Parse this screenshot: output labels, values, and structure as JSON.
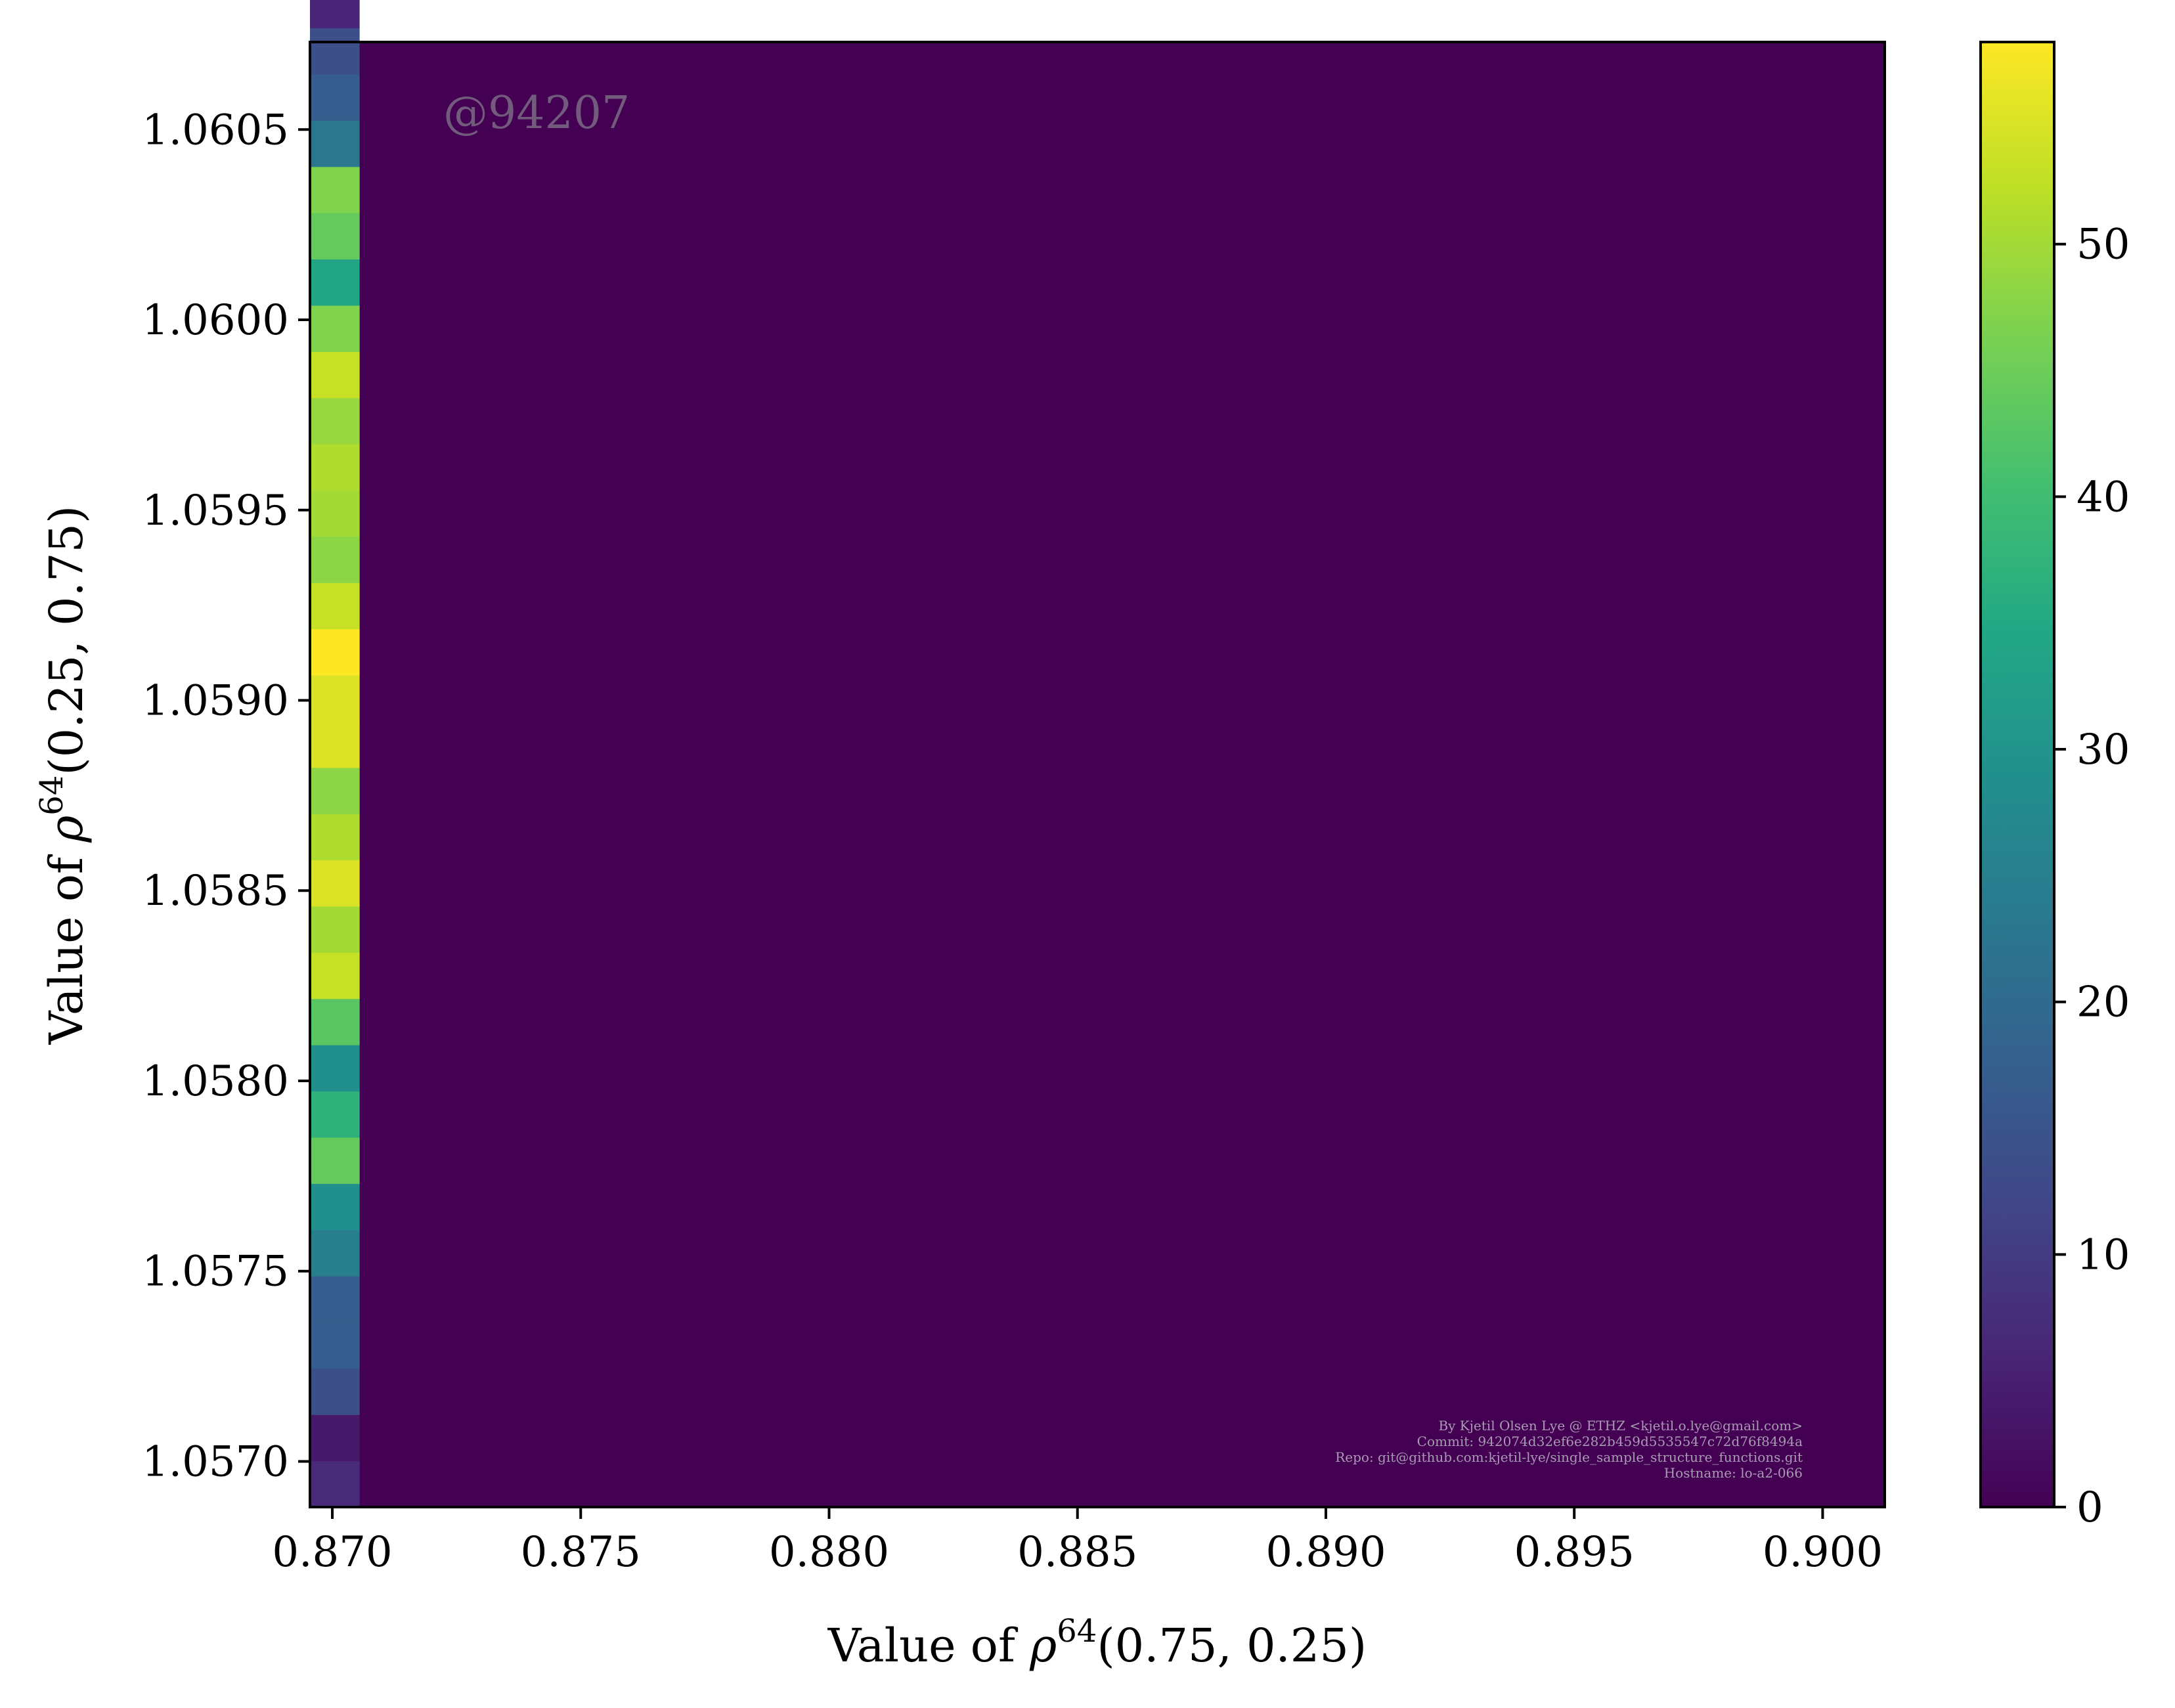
{
  "chart_data": {
    "type": "heatmap",
    "title": "",
    "xlabel": {
      "prefix": "Value of ",
      "var": "ρ",
      "sup": "64",
      "args": "(0.75, 0.25)"
    },
    "ylabel": {
      "prefix": "Value of ",
      "var": "ρ",
      "sup": "64",
      "args": "(0.25, 0.75)"
    },
    "xlim": [
      0.86955,
      0.90125
    ],
    "ylim": [
      1.05688,
      1.06073
    ],
    "xticks": [
      0.87,
      0.875,
      0.88,
      0.885,
      0.89,
      0.895,
      0.9
    ],
    "xtick_labels": [
      "0.870",
      "0.875",
      "0.880",
      "0.885",
      "0.890",
      "0.895",
      "0.900"
    ],
    "yticks": [
      1.057,
      1.0575,
      1.058,
      1.0585,
      1.059,
      1.0595,
      1.06,
      1.0605
    ],
    "ytick_labels": [
      "1.0570",
      "1.0575",
      "1.0580",
      "1.0585",
      "1.0590",
      "1.0595",
      "1.0600",
      "1.0605"
    ],
    "colormap": "viridis",
    "background_color": "#440154",
    "colorbar": {
      "min": 0,
      "max": 58,
      "ticks": [
        0,
        10,
        20,
        30,
        40,
        50
      ],
      "tick_labels": [
        "0",
        "10",
        "20",
        "30",
        "40",
        "50"
      ]
    },
    "bins": {
      "x_start": 0.86955,
      "x_end": 0.87055,
      "y_start": 1.05688,
      "y_step": 0.00012147,
      "counts": [
        7,
        4,
        14,
        17,
        17,
        25,
        29,
        44,
        37,
        29,
        43,
        53,
        50,
        55,
        51,
        48,
        55,
        55,
        58,
        53,
        48,
        50,
        51,
        49,
        53,
        47,
        34,
        44,
        47,
        23,
        17,
        14,
        6
      ]
    },
    "watermark": "@94207",
    "credits": [
      "By Kjetil Olsen Lye @ ETHZ <kjetil.o.lye@gmail.com>",
      "Commit: 942074d32ef6e282b459d5535547c72d76f8494a",
      "Repo: git@github.com:kjetil-lye/single_sample_structure_functions.git",
      "Hostname: lo-a2-066"
    ]
  }
}
